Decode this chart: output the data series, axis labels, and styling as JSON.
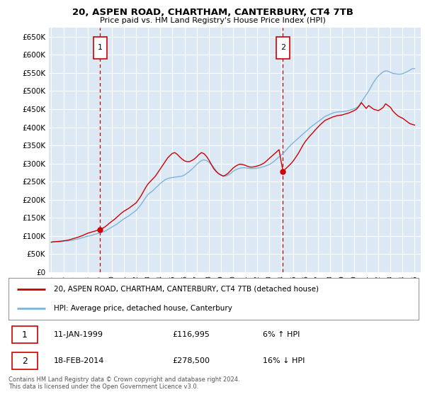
{
  "title": "20, ASPEN ROAD, CHARTHAM, CANTERBURY, CT4 7TB",
  "subtitle": "Price paid vs. HM Land Registry's House Price Index (HPI)",
  "ylabel_ticks": [
    "£0",
    "£50K",
    "£100K",
    "£150K",
    "£200K",
    "£250K",
    "£300K",
    "£350K",
    "£400K",
    "£450K",
    "£500K",
    "£550K",
    "£600K",
    "£650K"
  ],
  "ytick_values": [
    0,
    50000,
    100000,
    150000,
    200000,
    250000,
    300000,
    350000,
    400000,
    450000,
    500000,
    550000,
    600000,
    650000
  ],
  "ylim": [
    0,
    675000
  ],
  "xlim_start": 1994.8,
  "xlim_end": 2025.5,
  "bg_color": "#dce9f5",
  "grid_color": "#ffffff",
  "sale1_date": "11-JAN-1999",
  "sale1_price": 116995,
  "sale1_label": "1",
  "sale1_pct": "6% ↑ HPI",
  "sale2_date": "18-FEB-2014",
  "sale2_price": 278500,
  "sale2_label": "2",
  "sale2_pct": "16% ↓ HPI",
  "legend_red": "20, ASPEN ROAD, CHARTHAM, CANTERBURY, CT4 7TB (detached house)",
  "legend_blue": "HPI: Average price, detached house, Canterbury",
  "footnote": "Contains HM Land Registry data © Crown copyright and database right 2024.\nThis data is licensed under the Open Government Licence v3.0.",
  "red_color": "#cc0000",
  "blue_color": "#7fb3d9",
  "sale1_x": 1999.03,
  "sale2_x": 2014.12,
  "hpi_data": [
    [
      1995.0,
      82000
    ],
    [
      1995.2,
      83000
    ],
    [
      1995.4,
      83500
    ],
    [
      1995.6,
      83000
    ],
    [
      1995.8,
      83500
    ],
    [
      1996.0,
      85000
    ],
    [
      1996.2,
      85500
    ],
    [
      1996.4,
      86000
    ],
    [
      1996.6,
      87000
    ],
    [
      1996.8,
      88000
    ],
    [
      1997.0,
      90000
    ],
    [
      1997.2,
      91000
    ],
    [
      1997.4,
      93000
    ],
    [
      1997.6,
      95000
    ],
    [
      1997.8,
      97000
    ],
    [
      1998.0,
      99000
    ],
    [
      1998.2,
      100000
    ],
    [
      1998.4,
      102000
    ],
    [
      1998.6,
      104000
    ],
    [
      1998.8,
      106000
    ],
    [
      1999.0,
      108000
    ],
    [
      1999.2,
      110000
    ],
    [
      1999.4,
      112000
    ],
    [
      1999.6,
      116000
    ],
    [
      1999.8,
      120000
    ],
    [
      2000.0,
      124000
    ],
    [
      2000.2,
      128000
    ],
    [
      2000.4,
      132000
    ],
    [
      2000.6,
      137000
    ],
    [
      2000.8,
      142000
    ],
    [
      2001.0,
      147000
    ],
    [
      2001.2,
      151000
    ],
    [
      2001.4,
      155000
    ],
    [
      2001.6,
      160000
    ],
    [
      2001.8,
      165000
    ],
    [
      2002.0,
      170000
    ],
    [
      2002.2,
      178000
    ],
    [
      2002.4,
      186000
    ],
    [
      2002.6,
      196000
    ],
    [
      2002.8,
      206000
    ],
    [
      2003.0,
      215000
    ],
    [
      2003.2,
      220000
    ],
    [
      2003.4,
      225000
    ],
    [
      2003.6,
      232000
    ],
    [
      2003.8,
      238000
    ],
    [
      2004.0,
      245000
    ],
    [
      2004.2,
      250000
    ],
    [
      2004.4,
      255000
    ],
    [
      2004.6,
      258000
    ],
    [
      2004.8,
      260000
    ],
    [
      2005.0,
      261000
    ],
    [
      2005.2,
      262000
    ],
    [
      2005.4,
      263000
    ],
    [
      2005.6,
      264000
    ],
    [
      2005.8,
      265000
    ],
    [
      2006.0,
      268000
    ],
    [
      2006.2,
      273000
    ],
    [
      2006.4,
      278000
    ],
    [
      2006.6,
      284000
    ],
    [
      2006.8,
      290000
    ],
    [
      2007.0,
      297000
    ],
    [
      2007.2,
      303000
    ],
    [
      2007.4,
      308000
    ],
    [
      2007.6,
      310000
    ],
    [
      2007.8,
      308000
    ],
    [
      2008.0,
      304000
    ],
    [
      2008.2,
      297000
    ],
    [
      2008.4,
      290000
    ],
    [
      2008.6,
      280000
    ],
    [
      2008.8,
      272000
    ],
    [
      2009.0,
      268000
    ],
    [
      2009.2,
      265000
    ],
    [
      2009.4,
      265000
    ],
    [
      2009.6,
      268000
    ],
    [
      2009.8,
      272000
    ],
    [
      2010.0,
      278000
    ],
    [
      2010.2,
      282000
    ],
    [
      2010.4,
      285000
    ],
    [
      2010.6,
      287000
    ],
    [
      2010.8,
      288000
    ],
    [
      2011.0,
      288000
    ],
    [
      2011.2,
      287000
    ],
    [
      2011.4,
      286000
    ],
    [
      2011.6,
      286000
    ],
    [
      2011.8,
      286000
    ],
    [
      2012.0,
      287000
    ],
    [
      2012.2,
      288000
    ],
    [
      2012.4,
      290000
    ],
    [
      2012.6,
      292000
    ],
    [
      2012.8,
      294000
    ],
    [
      2013.0,
      297000
    ],
    [
      2013.2,
      301000
    ],
    [
      2013.4,
      306000
    ],
    [
      2013.6,
      312000
    ],
    [
      2013.8,
      318000
    ],
    [
      2014.0,
      324000
    ],
    [
      2014.2,
      330000
    ],
    [
      2014.4,
      337000
    ],
    [
      2014.6,
      345000
    ],
    [
      2014.8,
      352000
    ],
    [
      2015.0,
      358000
    ],
    [
      2015.2,
      364000
    ],
    [
      2015.4,
      370000
    ],
    [
      2015.6,
      376000
    ],
    [
      2015.8,
      382000
    ],
    [
      2016.0,
      388000
    ],
    [
      2016.2,
      394000
    ],
    [
      2016.4,
      400000
    ],
    [
      2016.6,
      405000
    ],
    [
      2016.8,
      410000
    ],
    [
      2017.0,
      415000
    ],
    [
      2017.2,
      420000
    ],
    [
      2017.4,
      425000
    ],
    [
      2017.6,
      430000
    ],
    [
      2017.8,
      433000
    ],
    [
      2018.0,
      436000
    ],
    [
      2018.2,
      439000
    ],
    [
      2018.4,
      441000
    ],
    [
      2018.6,
      442000
    ],
    [
      2018.8,
      443000
    ],
    [
      2019.0,
      443000
    ],
    [
      2019.2,
      444000
    ],
    [
      2019.4,
      445000
    ],
    [
      2019.6,
      447000
    ],
    [
      2019.8,
      449000
    ],
    [
      2020.0,
      451000
    ],
    [
      2020.2,
      454000
    ],
    [
      2020.4,
      460000
    ],
    [
      2020.6,
      470000
    ],
    [
      2020.8,
      480000
    ],
    [
      2021.0,
      490000
    ],
    [
      2021.2,
      500000
    ],
    [
      2021.4,
      512000
    ],
    [
      2021.6,
      524000
    ],
    [
      2021.8,
      534000
    ],
    [
      2022.0,
      542000
    ],
    [
      2022.2,
      548000
    ],
    [
      2022.4,
      553000
    ],
    [
      2022.6,
      556000
    ],
    [
      2022.8,
      555000
    ],
    [
      2023.0,
      552000
    ],
    [
      2023.2,
      549000
    ],
    [
      2023.4,
      548000
    ],
    [
      2023.6,
      547000
    ],
    [
      2023.8,
      547000
    ],
    [
      2024.0,
      548000
    ],
    [
      2024.2,
      551000
    ],
    [
      2024.4,
      554000
    ],
    [
      2024.6,
      558000
    ],
    [
      2024.8,
      562000
    ],
    [
      2025.0,
      562000
    ]
  ],
  "price_data": [
    [
      1995.0,
      82500
    ],
    [
      1995.2,
      83500
    ],
    [
      1995.4,
      84000
    ],
    [
      1995.6,
      84500
    ],
    [
      1995.8,
      85000
    ],
    [
      1996.0,
      86000
    ],
    [
      1996.2,
      87000
    ],
    [
      1996.4,
      88000
    ],
    [
      1996.6,
      90000
    ],
    [
      1996.8,
      92000
    ],
    [
      1997.0,
      94000
    ],
    [
      1997.2,
      96000
    ],
    [
      1997.4,
      98500
    ],
    [
      1997.6,
      101000
    ],
    [
      1997.8,
      104000
    ],
    [
      1998.0,
      107000
    ],
    [
      1998.2,
      109000
    ],
    [
      1998.4,
      111000
    ],
    [
      1998.6,
      113000
    ],
    [
      1998.8,
      115000
    ],
    [
      1999.03,
      116995
    ],
    [
      1999.2,
      120000
    ],
    [
      1999.4,
      124000
    ],
    [
      1999.6,
      129000
    ],
    [
      1999.8,
      135000
    ],
    [
      2000.0,
      140000
    ],
    [
      2000.2,
      145000
    ],
    [
      2000.4,
      151000
    ],
    [
      2000.6,
      157000
    ],
    [
      2000.8,
      163000
    ],
    [
      2001.0,
      168000
    ],
    [
      2001.2,
      172000
    ],
    [
      2001.4,
      176000
    ],
    [
      2001.6,
      181000
    ],
    [
      2001.8,
      186000
    ],
    [
      2002.0,
      191000
    ],
    [
      2002.2,
      200000
    ],
    [
      2002.4,
      210000
    ],
    [
      2002.6,
      222000
    ],
    [
      2002.8,
      234000
    ],
    [
      2003.0,
      244000
    ],
    [
      2003.2,
      251000
    ],
    [
      2003.4,
      258000
    ],
    [
      2003.6,
      265000
    ],
    [
      2003.8,
      275000
    ],
    [
      2004.0,
      285000
    ],
    [
      2004.2,
      295000
    ],
    [
      2004.4,
      305000
    ],
    [
      2004.6,
      315000
    ],
    [
      2004.8,
      322000
    ],
    [
      2005.0,
      328000
    ],
    [
      2005.2,
      330000
    ],
    [
      2005.4,
      325000
    ],
    [
      2005.6,
      318000
    ],
    [
      2005.8,
      312000
    ],
    [
      2006.0,
      307000
    ],
    [
      2006.2,
      305000
    ],
    [
      2006.4,
      305000
    ],
    [
      2006.6,
      308000
    ],
    [
      2006.8,
      312000
    ],
    [
      2007.0,
      318000
    ],
    [
      2007.2,
      325000
    ],
    [
      2007.4,
      330000
    ],
    [
      2007.6,
      327000
    ],
    [
      2007.8,
      320000
    ],
    [
      2008.0,
      310000
    ],
    [
      2008.2,
      298000
    ],
    [
      2008.4,
      286000
    ],
    [
      2008.6,
      278000
    ],
    [
      2008.8,
      272000
    ],
    [
      2009.0,
      268000
    ],
    [
      2009.2,
      265000
    ],
    [
      2009.4,
      268000
    ],
    [
      2009.6,
      273000
    ],
    [
      2009.8,
      280000
    ],
    [
      2010.0,
      287000
    ],
    [
      2010.2,
      292000
    ],
    [
      2010.4,
      296000
    ],
    [
      2010.6,
      298000
    ],
    [
      2010.8,
      297000
    ],
    [
      2011.0,
      295000
    ],
    [
      2011.2,
      292000
    ],
    [
      2011.4,
      290000
    ],
    [
      2011.6,
      290000
    ],
    [
      2011.8,
      291000
    ],
    [
      2012.0,
      293000
    ],
    [
      2012.2,
      295000
    ],
    [
      2012.4,
      298000
    ],
    [
      2012.6,
      302000
    ],
    [
      2012.8,
      308000
    ],
    [
      2013.0,
      314000
    ],
    [
      2013.2,
      320000
    ],
    [
      2013.4,
      326000
    ],
    [
      2013.6,
      332000
    ],
    [
      2013.8,
      338000
    ],
    [
      2014.12,
      278500
    ],
    [
      2014.5,
      290000
    ],
    [
      2014.8,
      300000
    ],
    [
      2015.0,
      308000
    ],
    [
      2015.2,
      318000
    ],
    [
      2015.4,
      328000
    ],
    [
      2015.6,
      340000
    ],
    [
      2015.8,
      352000
    ],
    [
      2016.0,
      362000
    ],
    [
      2016.2,
      370000
    ],
    [
      2016.4,
      378000
    ],
    [
      2016.6,
      385000
    ],
    [
      2016.8,
      393000
    ],
    [
      2017.0,
      400000
    ],
    [
      2017.2,
      407000
    ],
    [
      2017.4,
      413000
    ],
    [
      2017.6,
      419000
    ],
    [
      2017.8,
      422000
    ],
    [
      2018.0,
      425000
    ],
    [
      2018.2,
      428000
    ],
    [
      2018.4,
      430000
    ],
    [
      2018.6,
      432000
    ],
    [
      2018.8,
      433000
    ],
    [
      2019.0,
      434000
    ],
    [
      2019.2,
      436000
    ],
    [
      2019.4,
      438000
    ],
    [
      2019.6,
      440000
    ],
    [
      2019.8,
      443000
    ],
    [
      2020.0,
      446000
    ],
    [
      2020.2,
      450000
    ],
    [
      2020.4,
      458000
    ],
    [
      2020.6,
      468000
    ],
    [
      2020.8,
      460000
    ],
    [
      2021.0,
      452000
    ],
    [
      2021.2,
      460000
    ],
    [
      2021.4,
      455000
    ],
    [
      2021.6,
      450000
    ],
    [
      2021.8,
      448000
    ],
    [
      2022.0,
      446000
    ],
    [
      2022.2,
      450000
    ],
    [
      2022.4,
      455000
    ],
    [
      2022.6,
      465000
    ],
    [
      2022.8,
      460000
    ],
    [
      2023.0,
      455000
    ],
    [
      2023.2,
      445000
    ],
    [
      2023.4,
      438000
    ],
    [
      2023.6,
      432000
    ],
    [
      2023.8,
      428000
    ],
    [
      2024.0,
      425000
    ],
    [
      2024.2,
      420000
    ],
    [
      2024.4,
      415000
    ],
    [
      2024.6,
      410000
    ],
    [
      2024.8,
      408000
    ],
    [
      2025.0,
      406000
    ]
  ]
}
